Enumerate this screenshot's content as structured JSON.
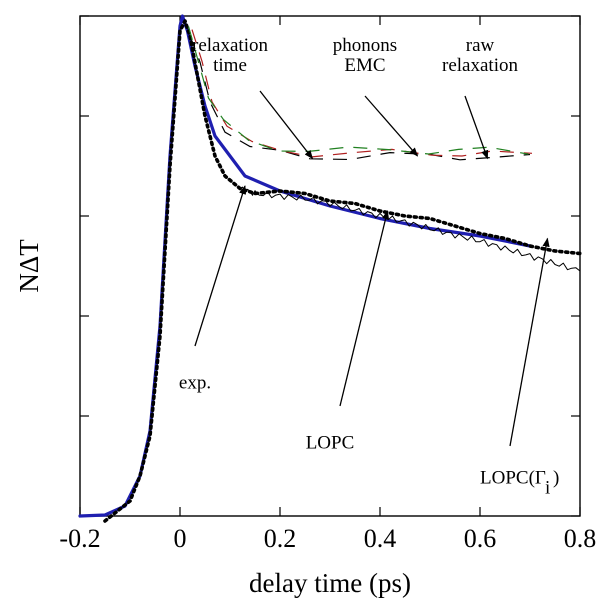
{
  "chart_data": {
    "type": "line",
    "title": "",
    "xlabel": "delay time (ps)",
    "ylabel": "NΔT",
    "xlim": [
      -0.2,
      0.8
    ],
    "ylim": [
      0,
      1
    ],
    "x_ticks": [
      -0.2,
      0,
      0.2,
      0.4,
      0.6,
      0.8
    ],
    "x_tick_labels": [
      "-0.2",
      "0",
      "0.2",
      "0.4",
      "0.6",
      "0.8"
    ],
    "y_ticks": [
      0,
      0.2,
      0.4,
      0.6,
      0.8,
      1.0
    ],
    "grid": false,
    "legend": "none",
    "series": [
      {
        "color": "#1f1fb0",
        "style": "solid-thick",
        "points": [
          [
            -0.2,
            0
          ],
          [
            -0.15,
            0.002
          ],
          [
            -0.11,
            0.02
          ],
          [
            -0.08,
            0.08
          ],
          [
            -0.06,
            0.17
          ],
          [
            -0.04,
            0.38
          ],
          [
            -0.02,
            0.72
          ],
          [
            0,
            0.98
          ],
          [
            0.005,
            1.0
          ],
          [
            0.015,
            0.97
          ],
          [
            0.03,
            0.9
          ],
          [
            0.05,
            0.82
          ],
          [
            0.07,
            0.76
          ],
          [
            0.1,
            0.72
          ],
          [
            0.13,
            0.68
          ],
          [
            0.2,
            0.65
          ],
          [
            0.3,
            0.62
          ],
          [
            0.4,
            0.595
          ],
          [
            0.5,
            0.575
          ],
          [
            0.6,
            0.56
          ],
          [
            0.7,
            0.54
          ]
        ]
      },
      {
        "color": "#000000",
        "style": "dotted-thick",
        "points": [
          [
            -0.15,
            -0.01
          ],
          [
            -0.1,
            0.03
          ],
          [
            -0.08,
            0.08
          ],
          [
            -0.06,
            0.16
          ],
          [
            -0.04,
            0.36
          ],
          [
            -0.02,
            0.7
          ],
          [
            0,
            0.97
          ],
          [
            0.01,
            0.99
          ],
          [
            0.02,
            0.96
          ],
          [
            0.035,
            0.88
          ],
          [
            0.05,
            0.8
          ],
          [
            0.07,
            0.72
          ],
          [
            0.09,
            0.68
          ],
          [
            0.12,
            0.655
          ],
          [
            0.15,
            0.645
          ],
          [
            0.2,
            0.65
          ],
          [
            0.25,
            0.645
          ],
          [
            0.3,
            0.63
          ],
          [
            0.35,
            0.625
          ],
          [
            0.4,
            0.61
          ],
          [
            0.45,
            0.6
          ],
          [
            0.5,
            0.595
          ],
          [
            0.55,
            0.58
          ],
          [
            0.6,
            0.565
          ],
          [
            0.65,
            0.555
          ],
          [
            0.7,
            0.54
          ],
          [
            0.75,
            0.53
          ],
          [
            0.8,
            0.525
          ]
        ]
      },
      {
        "color": "#000000",
        "style": "solid-thin-noisy",
        "points": [
          [
            0.12,
            0.655
          ],
          [
            0.15,
            0.645
          ],
          [
            0.2,
            0.64
          ],
          [
            0.25,
            0.635
          ],
          [
            0.3,
            0.625
          ],
          [
            0.35,
            0.612
          ],
          [
            0.4,
            0.6
          ],
          [
            0.45,
            0.588
          ],
          [
            0.5,
            0.575
          ],
          [
            0.55,
            0.562
          ],
          [
            0.6,
            0.55
          ],
          [
            0.65,
            0.535
          ],
          [
            0.7,
            0.52
          ],
          [
            0.75,
            0.505
          ],
          [
            0.8,
            0.49
          ]
        ]
      }
    ],
    "dashed_traces": {
      "colors": [
        "#000000",
        "#b02020",
        "#208020"
      ],
      "points": [
        [
          0.02,
          0.96
        ],
        [
          0.04,
          0.9
        ],
        [
          0.06,
          0.83
        ],
        [
          0.09,
          0.775
        ],
        [
          0.14,
          0.735
        ],
        [
          0.2,
          0.725
        ],
        [
          0.26,
          0.72
        ],
        [
          0.34,
          0.718
        ],
        [
          0.42,
          0.72
        ],
        [
          0.5,
          0.72
        ],
        [
          0.56,
          0.72
        ],
        [
          0.62,
          0.718
        ],
        [
          0.7,
          0.715
        ]
      ]
    },
    "annotations": [
      {
        "text": "relaxation",
        "x": 0.1,
        "y": 0.93
      },
      {
        "text": "time",
        "x": 0.1,
        "y": 0.89
      },
      {
        "text": "phonons",
        "x": 0.37,
        "y": 0.93
      },
      {
        "text": "EMC",
        "x": 0.37,
        "y": 0.89
      },
      {
        "text": "raw",
        "x": 0.6,
        "y": 0.93
      },
      {
        "text": "relaxation",
        "x": 0.6,
        "y": 0.89
      },
      {
        "text": "exp.",
        "x": 0.03,
        "y": 0.255
      },
      {
        "text": "LOPC",
        "x": 0.3,
        "y": 0.135
      },
      {
        "text": "LOPC(Γ",
        "x": 0.6,
        "y": 0.065
      },
      {
        "text": "i",
        "x": 0.73,
        "y": 0.045
      },
      {
        "text": ")",
        "x": 0.746,
        "y": 0.065
      }
    ],
    "arrows": [
      {
        "from": [
          0.16,
          0.85
        ],
        "to": [
          0.265,
          0.715
        ]
      },
      {
        "from": [
          0.37,
          0.84
        ],
        "to": [
          0.475,
          0.72
        ]
      },
      {
        "from": [
          0.57,
          0.84
        ],
        "to": [
          0.615,
          0.715
        ]
      },
      {
        "from": [
          0.03,
          0.34
        ],
        "to": [
          0.13,
          0.66
        ]
      },
      {
        "from": [
          0.32,
          0.22
        ],
        "to": [
          0.415,
          0.61
        ]
      },
      {
        "from": [
          0.66,
          0.14
        ],
        "to": [
          0.735,
          0.555
        ]
      }
    ]
  }
}
